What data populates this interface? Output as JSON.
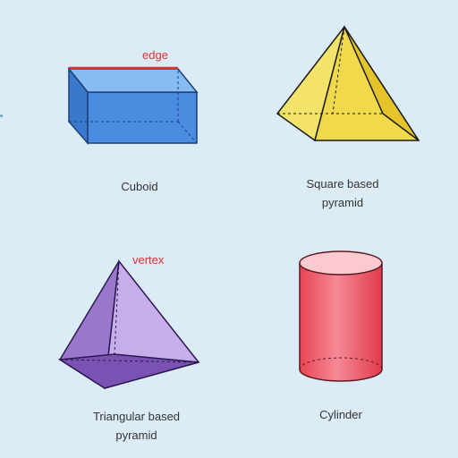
{
  "shapes": {
    "cuboid": {
      "caption": "Cuboid",
      "annotation": "edge",
      "fill": "#5b9ee6",
      "stroke": "#1d3f7a"
    },
    "square_pyramid": {
      "caption_line1": "Square based",
      "caption_line2": "pyramid",
      "fill": "#f2e05a",
      "stroke": "#1a1a1a"
    },
    "triangular_pyramid": {
      "annotation": "vertex",
      "caption_line1": "Triangular based",
      "caption_line2": "pyramid",
      "fill": "#b89ae0",
      "stroke": "#2a1850"
    },
    "cylinder": {
      "caption": "Cylinder",
      "fill": "#f06070",
      "stroke": "#5a1a22"
    }
  },
  "colors": {
    "background": "#dcecf6",
    "annotation": "#e03030",
    "caption_text": "#333333"
  }
}
